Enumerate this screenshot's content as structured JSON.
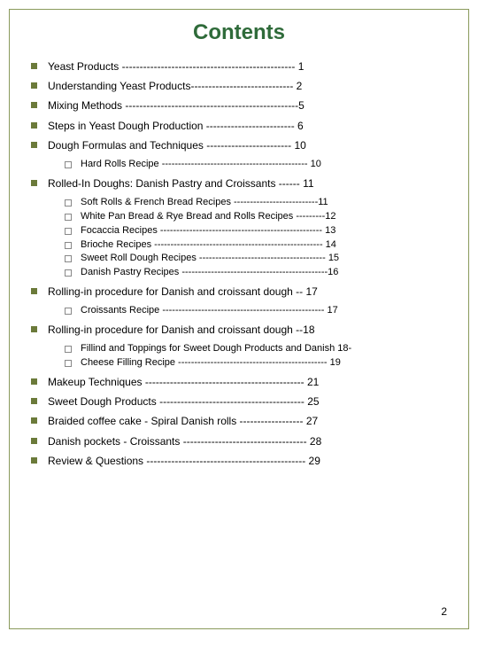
{
  "title": "Contents",
  "pageNumber": "2",
  "colors": {
    "border": "#8a9a5b",
    "title": "#2f6b3a",
    "bulletMain": "#6b7a3a",
    "bulletSubBorder": "#888888",
    "text": "#000000",
    "background": "#ffffff"
  },
  "items": [
    {
      "text": "Yeast Products ------------------------------------------------- 1"
    },
    {
      "text": "Understanding Yeast Products----------------------------- 2"
    },
    {
      "text": "Mixing Methods -------------------------------------------------5"
    },
    {
      "text": "Steps in Yeast Dough Production ------------------------- 6"
    },
    {
      "text": "Dough Formulas and Techniques ------------------------ 10",
      "sub": [
        {
          "text": "Hard Rolls Recipe --------------------------------------------- 10"
        }
      ]
    },
    {
      "text": "Rolled-In Doughs: Danish Pastry and Croissants ------ 11",
      "sub": [
        {
          "text": "Soft Rolls & French Bread Recipes --------------------------11"
        },
        {
          "text": "White Pan Bread & Rye Bread and Rolls Recipes ---------12"
        },
        {
          "text": "Focaccia Recipes -------------------------------------------------- 13"
        },
        {
          "text": "Brioche Recipes ---------------------------------------------------- 14"
        },
        {
          "text": "Sweet Roll Dough Recipes --------------------------------------- 15"
        },
        {
          "text": "Danish Pastry Recipes ---------------------------------------------16"
        }
      ]
    },
    {
      "text": "Rolling-in procedure for Danish and croissant dough -- 17",
      "sub": [
        {
          "text": "Croissants Recipe -------------------------------------------------- 17"
        }
      ]
    },
    {
      "text": "Rolling-in procedure for Danish and croissant dough --18",
      "sub": [
        {
          "text": "Fillind and Toppings for Sweet Dough Products and Danish 18-"
        },
        {
          "text": "Cheese Filling Recipe ---------------------------------------------- 19"
        }
      ]
    },
    {
      "text": "Makeup Techniques --------------------------------------------- 21"
    },
    {
      "text": "Sweet Dough Products ----------------------------------------- 25"
    },
    {
      "text": "Braided coffee cake - Spiral Danish rolls ------------------ 27"
    },
    {
      "text": "Danish pockets - Croissants ----------------------------------- 28"
    },
    {
      "text": "Review & Questions --------------------------------------------- 29"
    }
  ]
}
